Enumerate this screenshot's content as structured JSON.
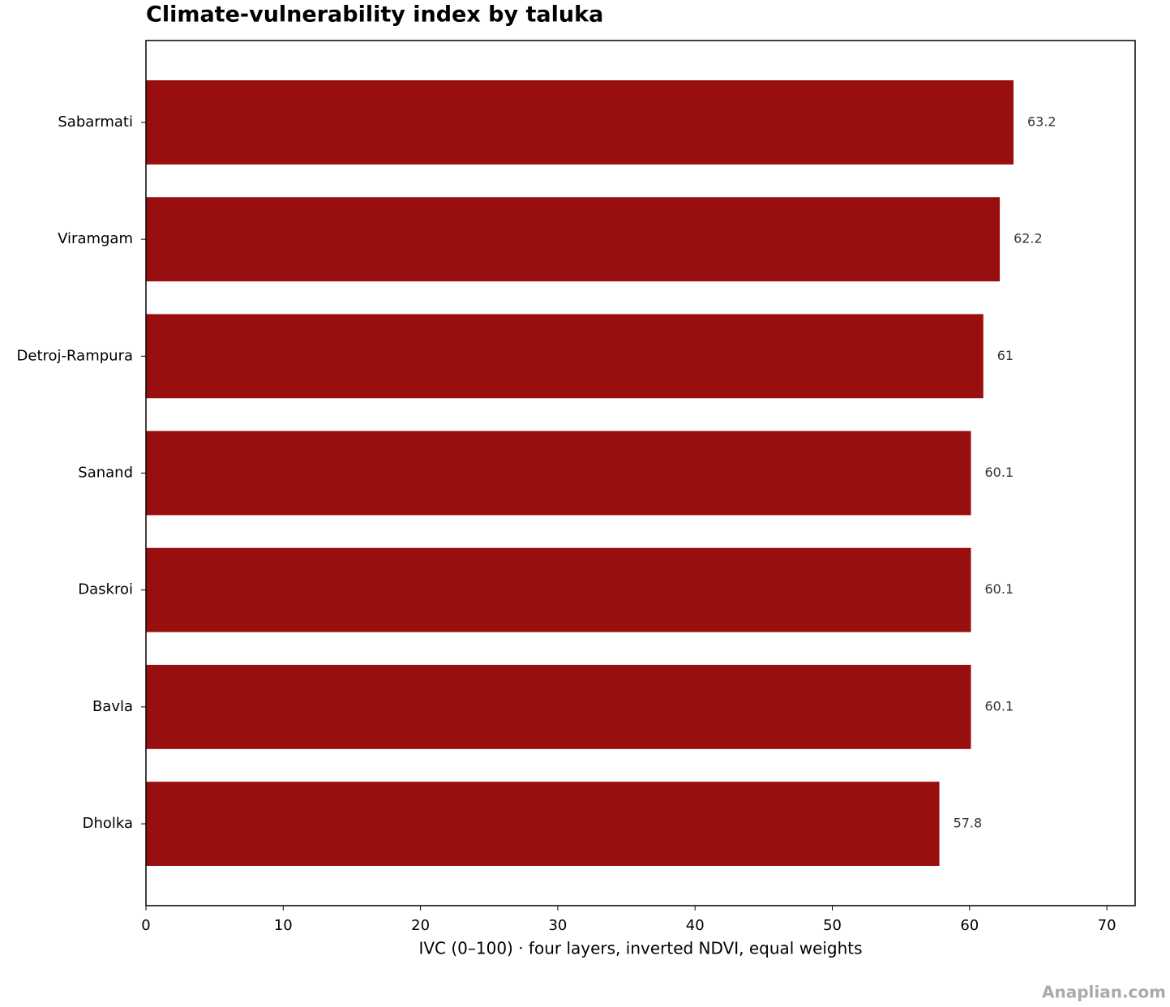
{
  "chart_data": {
    "type": "bar",
    "orientation": "horizontal",
    "title": "Climate-vulnerability index by taluka",
    "xlabel": "IVC (0–100) · four layers, inverted NDVI, equal weights",
    "categories": [
      "Sabarmati",
      "Viramgam",
      "Detroj-Rampura",
      "Sanand",
      "Daskroi",
      "Bavla",
      "Dholka"
    ],
    "values": [
      63.2,
      62.2,
      61.0,
      60.1,
      60.1,
      60.1,
      57.8
    ],
    "color": "#990e0e",
    "xlim": [
      0,
      72.06
    ],
    "xticks": [
      0,
      10,
      20,
      30,
      40,
      50,
      60,
      70
    ],
    "grid": false,
    "watermark": "Anaplian.com"
  }
}
